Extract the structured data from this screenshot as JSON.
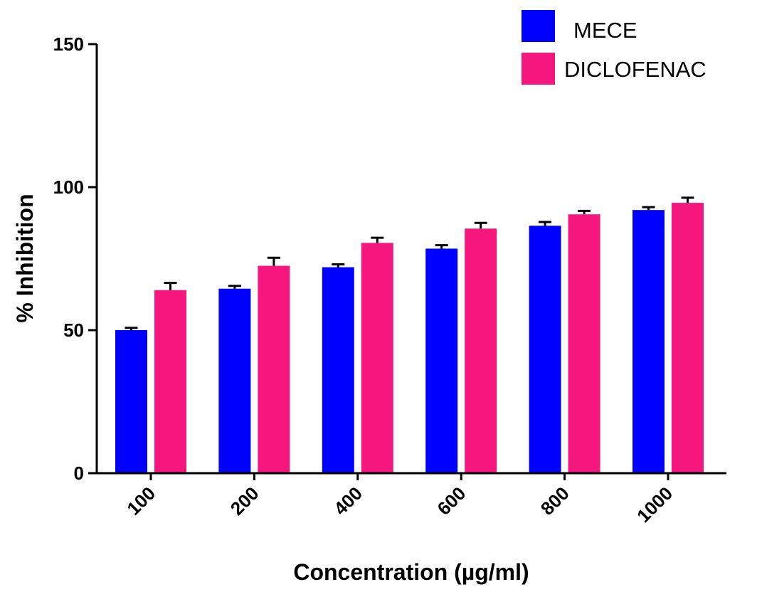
{
  "chart_data": {
    "type": "bar",
    "categories": [
      "100",
      "200",
      "400",
      "600",
      "800",
      "1000"
    ],
    "series": [
      {
        "name": "MECE",
        "color": "#0000ff",
        "values": [
          50,
          64.5,
          72,
          78.5,
          86.5,
          92
        ],
        "errors": [
          0.8,
          1.0,
          1.0,
          1.2,
          1.3,
          1.0
        ]
      },
      {
        "name": "DICLOFENAC",
        "color": "#f5167e",
        "values": [
          64,
          72.5,
          80.5,
          85.5,
          90.5,
          94.5
        ],
        "errors": [
          2.5,
          2.8,
          1.8,
          2.0,
          1.2,
          1.8
        ]
      }
    ],
    "xlabel": "Concentration (µg/ml)",
    "ylabel": "% Inhibition",
    "ylim": [
      0,
      150
    ],
    "yticks": [
      "0",
      "50",
      "100",
      "150"
    ],
    "grid": false,
    "legend_position": "top-right"
  }
}
